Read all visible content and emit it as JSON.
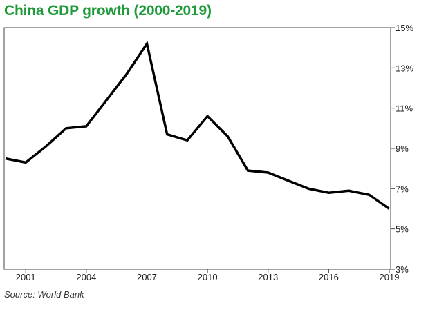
{
  "title": "China GDP growth (2000-2019)",
  "source": "Source: World Bank",
  "colors": {
    "title": "#1e9a3a",
    "line": "#000000",
    "axis": "#444444"
  },
  "chart_data": {
    "type": "line",
    "title": "China GDP growth (2000-2019)",
    "xlabel": "",
    "ylabel": "",
    "x": [
      2000,
      2001,
      2002,
      2003,
      2004,
      2005,
      2006,
      2007,
      2008,
      2009,
      2010,
      2011,
      2012,
      2013,
      2014,
      2015,
      2016,
      2017,
      2018,
      2019
    ],
    "series": [
      {
        "values": [
          8.5,
          8.3,
          9.1,
          10.0,
          10.1,
          11.4,
          12.7,
          14.2,
          9.7,
          9.4,
          10.6,
          9.6,
          7.9,
          7.8,
          7.4,
          7.0,
          6.8,
          6.9,
          6.7,
          6.0
        ]
      }
    ],
    "xlim": [
      2000,
      2019
    ],
    "ylim": [
      3,
      15
    ],
    "x_ticks": [
      2001,
      2004,
      2007,
      2010,
      2013,
      2016,
      2019
    ],
    "y_ticks": [
      15,
      13,
      11,
      9,
      7,
      5,
      3
    ],
    "y_tick_labels": [
      "15%",
      "13%",
      "11%",
      "9%",
      "7%",
      "5%",
      "3%"
    ],
    "grid": false,
    "y_axis_side": "right"
  }
}
